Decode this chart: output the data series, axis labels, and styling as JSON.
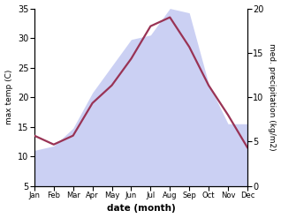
{
  "months": [
    "Jan",
    "Feb",
    "Mar",
    "Apr",
    "May",
    "Jun",
    "Jul",
    "Aug",
    "Sep",
    "Oct",
    "Nov",
    "Dec"
  ],
  "max_temp": [
    13.5,
    12.0,
    13.5,
    19.0,
    22.0,
    26.5,
    32.0,
    33.5,
    28.5,
    22.0,
    17.0,
    11.5
  ],
  "precipitation": [
    4.0,
    4.5,
    6.5,
    10.5,
    13.5,
    16.5,
    17.0,
    20.0,
    19.5,
    11.5,
    7.0,
    7.0
  ],
  "temp_ylim": [
    5,
    35
  ],
  "precip_ylim": [
    0,
    20
  ],
  "temp_yticks": [
    5,
    10,
    15,
    20,
    25,
    30,
    35
  ],
  "precip_yticks": [
    0,
    5,
    10,
    15,
    20
  ],
  "ylabel_left": "max temp (C)",
  "ylabel_right": "med. precipitation (kg/m2)",
  "xlabel": "date (month)",
  "fill_color": "#b0b8ee",
  "fill_alpha": 0.65,
  "line_color": "#993355",
  "line_width": 1.6,
  "bg_color": "#ffffff"
}
